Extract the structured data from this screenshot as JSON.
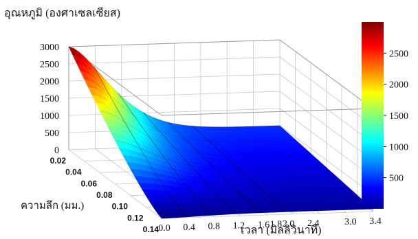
{
  "chart_data": {
    "type": "surface",
    "zlabel": "อุณหภูมิ (องศาเซลเซียส)",
    "xlabel": "เวลา (มิลลิวินาที)",
    "ylabel": "ความลึก (มม.)",
    "time_ticks": [
      "0.0",
      "0.4",
      "0.8",
      "1.2",
      "1.6",
      "1.8",
      "2.0",
      "2.4",
      "3.0",
      "3.4"
    ],
    "depth_ticks": [
      "0.02",
      "0.04",
      "0.06",
      "0.08",
      "0.10",
      "0.12",
      "0.14"
    ],
    "temp_ticks": [
      "0",
      "500",
      "1000",
      "1500",
      "2000",
      "2500",
      "3000"
    ],
    "colorbar_ticks": [
      "500",
      "1000",
      "1500",
      "2000",
      "2500"
    ],
    "time_range": [
      0.0,
      3.4
    ],
    "depth_range": [
      0.02,
      0.14
    ],
    "temp_range": [
      0,
      3000
    ],
    "colorbar_range": [
      0,
      3000
    ],
    "colormap": "jet",
    "grid": true,
    "peak": {
      "time": 0.0,
      "depth": 0.02,
      "temp": 3000
    },
    "approx_temp_at_3_4ms": 500
  }
}
